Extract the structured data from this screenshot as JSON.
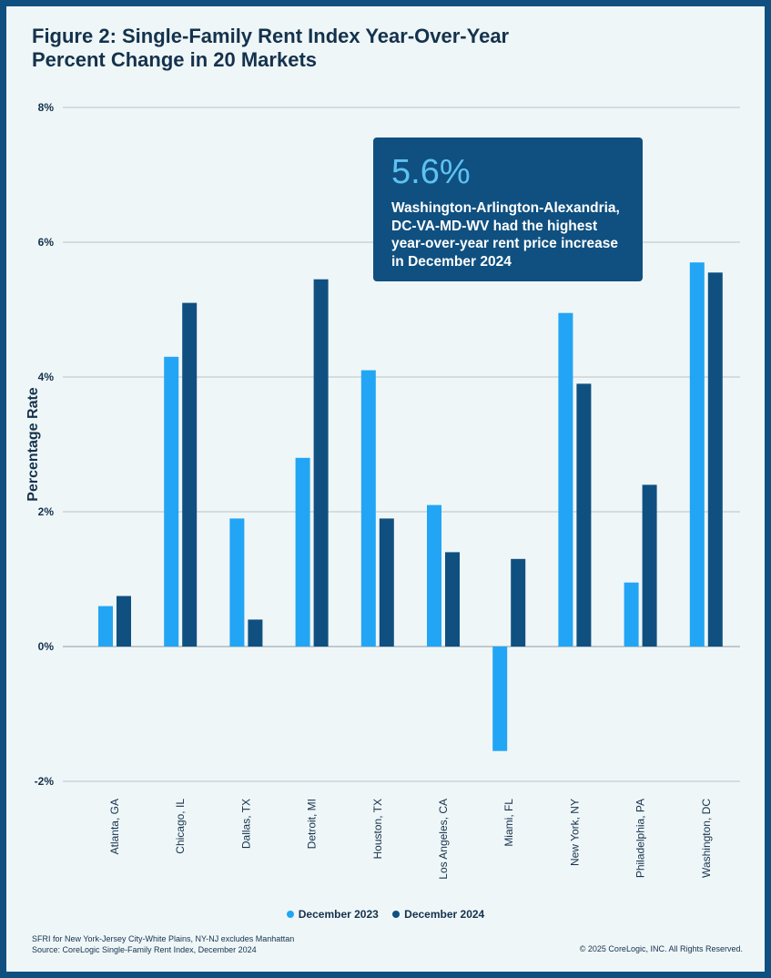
{
  "title": {
    "line1": "Figure 2: Single-Family Rent Index Year-Over-Year",
    "line2": "Percent Change in 20 Markets"
  },
  "callout": {
    "value": "5.6%",
    "lines": [
      "Washington-Arlington-Alexandria,",
      "DC-VA-MD-WV had the highest",
      "year-over-year rent price increase",
      "in December 2024"
    ]
  },
  "footnote": {
    "line1": "SFRI for New York-Jersey City-White Plains, NY-NJ excludes Manhattan",
    "line2": "Source: CoreLogic Single-Family Rent Index, December 2024"
  },
  "copyright": "© 2025 CoreLogic, INC. All Rights Reserved.",
  "colors": {
    "series_2023": "#22a5f4",
    "series_2024": "#0f5080",
    "grid": "#b9c2c8"
  },
  "chart_data": {
    "type": "bar",
    "title": "Figure 2: Single-Family Rent Index Year-Over-Year Percent Change in 20 Markets",
    "xlabel": "",
    "ylabel": "Percentage Rate",
    "ylim": [
      -2,
      8
    ],
    "yticks": [
      -2,
      0,
      2,
      4,
      6,
      8
    ],
    "ytick_labels": [
      "-2%",
      "0%",
      "2%",
      "4%",
      "6%",
      "8%"
    ],
    "grid": true,
    "legend_position": "bottom",
    "categories": [
      "Atlanta, GA",
      "Chicago, IL",
      "Dallas, TX",
      "Detroit, MI",
      "Houston, TX",
      "Los Angeles, CA",
      "Miami, FL",
      "New York, NY",
      "Philadelphia, PA",
      "Washington, DC"
    ],
    "series": [
      {
        "name": "December 2023",
        "values": [
          0.6,
          4.3,
          1.9,
          2.8,
          4.1,
          2.1,
          -1.55,
          4.95,
          0.95,
          5.7
        ]
      },
      {
        "name": "December 2024",
        "values": [
          0.75,
          5.1,
          0.4,
          5.45,
          1.9,
          1.4,
          1.3,
          3.9,
          2.4,
          5.55
        ]
      }
    ]
  }
}
